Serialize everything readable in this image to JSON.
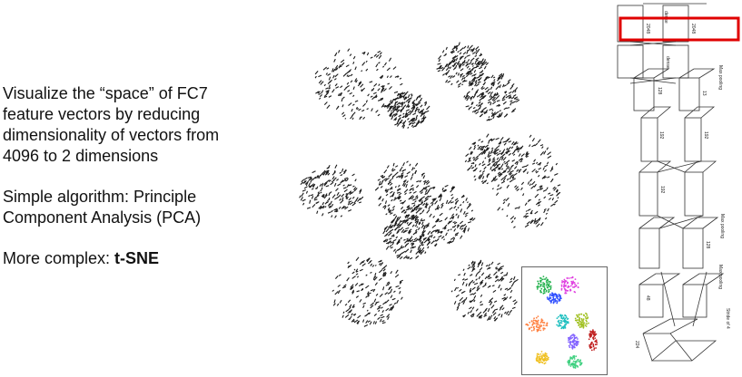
{
  "text": {
    "line1": "Visualize the “space” of FC7",
    "line2": "feature vectors by reducing",
    "line3": "dimensionality of vectors from",
    "line4": "4096 to 2 dimensions",
    "line5": "Simple algorithm: Principle",
    "line6": "Component Analysis (PCA)",
    "line7_prefix": "More complex: ",
    "line7_bold": "t-SNE"
  },
  "network_labels": {
    "dense_top": "dense",
    "dense_mid": "dense",
    "size_2048_left": "2048",
    "size_2048_right": "2048",
    "size_128": "128",
    "size_13": "13",
    "size_192_a": "192",
    "size_192_b": "192",
    "size_192_c": "192",
    "size_128_b": "128",
    "size_48": "48",
    "size_224": "224",
    "max_pooling_1": "Max pooling",
    "max_pooling_2": "Max pooling",
    "max_pooling_3": "Max pooling",
    "stride_of_4": "Stride of 4"
  },
  "colors": {
    "highlight_box": "#e00000",
    "tsne_clusters": [
      "#22b14c",
      "#e040e0",
      "#3050ff",
      "#ff8040",
      "#20c0c0",
      "#a0c020",
      "#c02020",
      "#8060ff",
      "#f0c020",
      "#40d080"
    ]
  }
}
